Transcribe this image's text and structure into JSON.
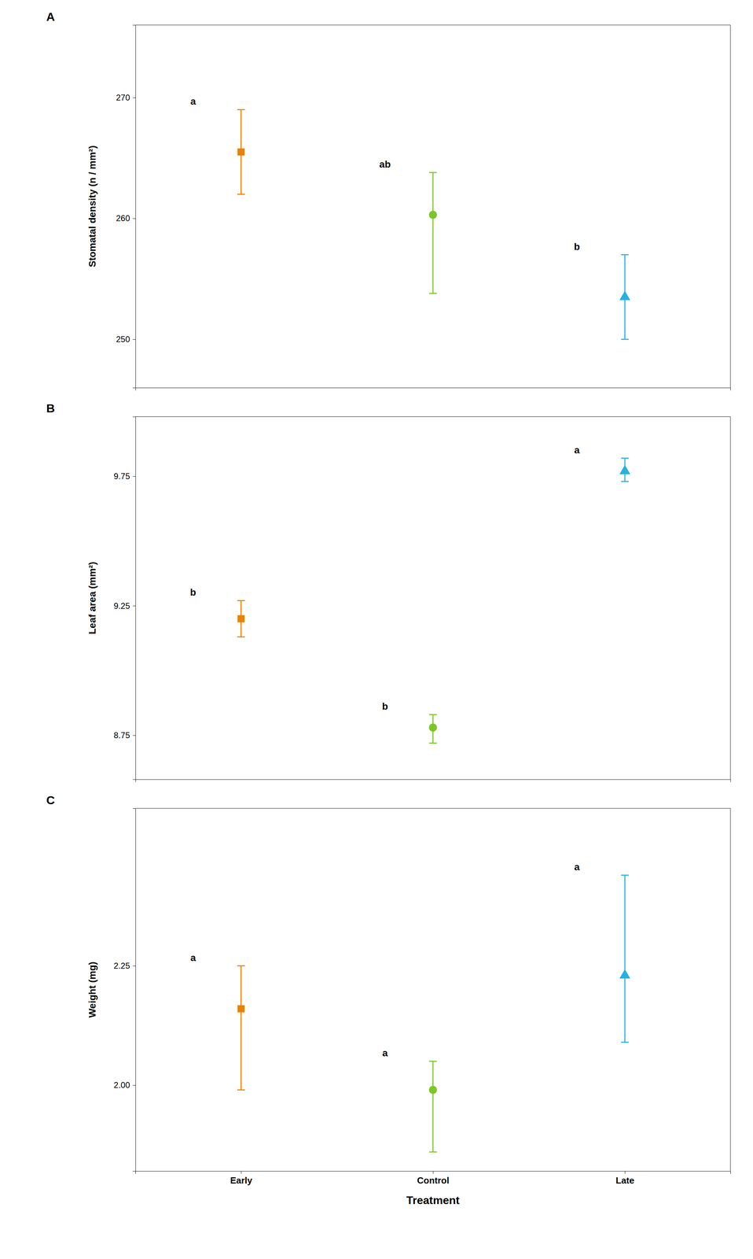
{
  "chart_data": [
    {
      "type": "scatter",
      "title": "A",
      "ylabel": "Stomatal density (n / mm²)",
      "categories": [
        "Early",
        "Control",
        "Late"
      ],
      "tick_labels": "y",
      "ylim": [
        246,
        276
      ],
      "yticks": [
        250,
        260,
        270
      ],
      "annotations": [
        "a",
        "ab",
        "b"
      ],
      "series": [
        {
          "color": "#E8820A",
          "marker": "square",
          "values": [
            265.5,
            null,
            null
          ],
          "yerr_lo": [
            3.5,
            null,
            null
          ],
          "yerr_hi": [
            3.5,
            null,
            null
          ]
        },
        {
          "color": "#7DC52A",
          "marker": "circle",
          "values": [
            null,
            260.3,
            null
          ],
          "yerr_lo": [
            null,
            6.5,
            null
          ],
          "yerr_hi": [
            null,
            3.5,
            null
          ]
        },
        {
          "color": "#29B0E0",
          "marker": "triangle",
          "values": [
            null,
            null,
            253.5
          ],
          "yerr_lo": [
            null,
            null,
            3.5
          ],
          "yerr_hi": [
            null,
            null,
            3.5
          ]
        }
      ]
    },
    {
      "type": "scatter",
      "title": "B",
      "ylabel": "Leaf area (mm²)",
      "categories": [
        "Early",
        "Control",
        "Late"
      ],
      "tick_labels": "y",
      "ylim": [
        8.58,
        9.98
      ],
      "yticks": [
        8.75,
        9.25,
        9.75
      ],
      "annotations": [
        "b",
        "b",
        "a"
      ],
      "series": [
        {
          "color": "#E8820A",
          "marker": "square",
          "values": [
            9.2,
            null,
            null
          ],
          "yerr_lo": [
            0.07,
            null,
            null
          ],
          "yerr_hi": [
            0.07,
            null,
            null
          ]
        },
        {
          "color": "#7DC52A",
          "marker": "circle",
          "values": [
            null,
            8.78,
            null
          ],
          "yerr_lo": [
            null,
            0.06,
            null
          ],
          "yerr_hi": [
            null,
            0.05,
            null
          ]
        },
        {
          "color": "#29B0E0",
          "marker": "triangle",
          "values": [
            null,
            null,
            9.77
          ],
          "yerr_lo": [
            null,
            null,
            0.04
          ],
          "yerr_hi": [
            null,
            null,
            0.05
          ]
        }
      ]
    },
    {
      "type": "scatter",
      "title": "C",
      "ylabel": "Weight (mg)",
      "xlabel": "Treatment",
      "categories": [
        "Early",
        "Control",
        "Late"
      ],
      "ylim": [
        1.82,
        2.58
      ],
      "yticks": [
        {
          "value": 2.0,
          "label": "2.00"
        },
        2.25
      ],
      "annotations": [
        "a",
        "a",
        "a"
      ],
      "series": [
        {
          "color": "#E8820A",
          "marker": "square",
          "values": [
            2.16,
            null,
            null
          ],
          "yerr_lo": [
            0.17,
            null,
            null
          ],
          "yerr_hi": [
            0.09,
            null,
            null
          ]
        },
        {
          "color": "#7DC52A",
          "marker": "circle",
          "values": [
            null,
            1.99,
            null
          ],
          "yerr_lo": [
            null,
            0.13,
            null
          ],
          "yerr_hi": [
            null,
            0.06,
            null
          ]
        },
        {
          "color": "#29B0E0",
          "marker": "triangle",
          "values": [
            null,
            null,
            2.23
          ],
          "yerr_lo": [
            null,
            null,
            0.14
          ],
          "yerr_hi": [
            null,
            null,
            0.21
          ]
        }
      ]
    }
  ]
}
